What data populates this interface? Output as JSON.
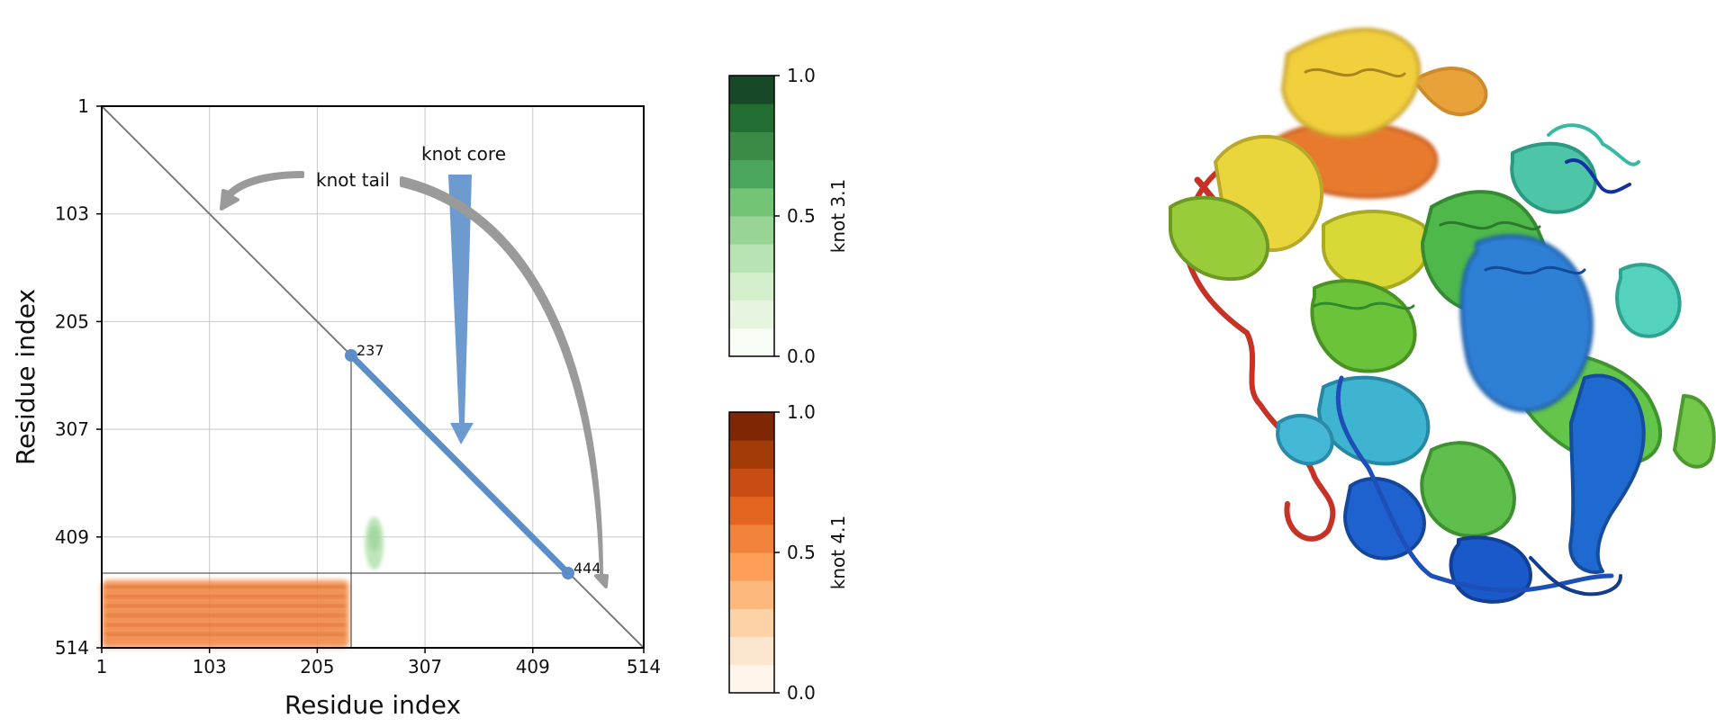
{
  "chart_data": {
    "type": "heatmap",
    "xlabel": "Residue index",
    "ylabel": "Residue index",
    "x_ticks": [
      "1",
      "103",
      "205",
      "307",
      "409",
      "514"
    ],
    "y_ticks": [
      "1",
      "103",
      "205",
      "307",
      "409",
      "514"
    ],
    "axis_range": [
      1,
      514
    ],
    "grid": true,
    "knot_core": {
      "start": 237,
      "end": 444,
      "start_label": "237",
      "end_label": "444"
    },
    "annotations": {
      "core": "knot core",
      "tail": "knot tail"
    },
    "regions": [
      {
        "knot": "4.1",
        "x_range": [
          1,
          235
        ],
        "y_range": [
          450,
          514
        ],
        "value": 0.55
      },
      {
        "knot": "3.1",
        "x_range": [
          250,
          268
        ],
        "y_range": [
          390,
          440
        ],
        "value": 0.3
      }
    ],
    "colorbars": [
      {
        "label": "knot 3.1",
        "cmap": "Greens",
        "ticks": [
          "0.0",
          "0.5",
          "1.0"
        ],
        "colors": [
          "#f7fcf5",
          "#e5f5e0",
          "#d4efcc",
          "#b8e3b2",
          "#98d496",
          "#74c476",
          "#4ba65d",
          "#3b8a48",
          "#236e33",
          "#174827"
        ]
      },
      {
        "label": "knot 4.1",
        "cmap": "Oranges",
        "ticks": [
          "0.0",
          "0.5",
          "1.0"
        ],
        "colors": [
          "#fff5eb",
          "#fde6cf",
          "#fcd2a6",
          "#fdb97d",
          "#fd9f59",
          "#f0823b",
          "#e2641f",
          "#c84c13",
          "#a33b08",
          "#7f2704"
        ]
      }
    ],
    "structure_image": "protein ribbon cartoon (rainbow colored)"
  }
}
